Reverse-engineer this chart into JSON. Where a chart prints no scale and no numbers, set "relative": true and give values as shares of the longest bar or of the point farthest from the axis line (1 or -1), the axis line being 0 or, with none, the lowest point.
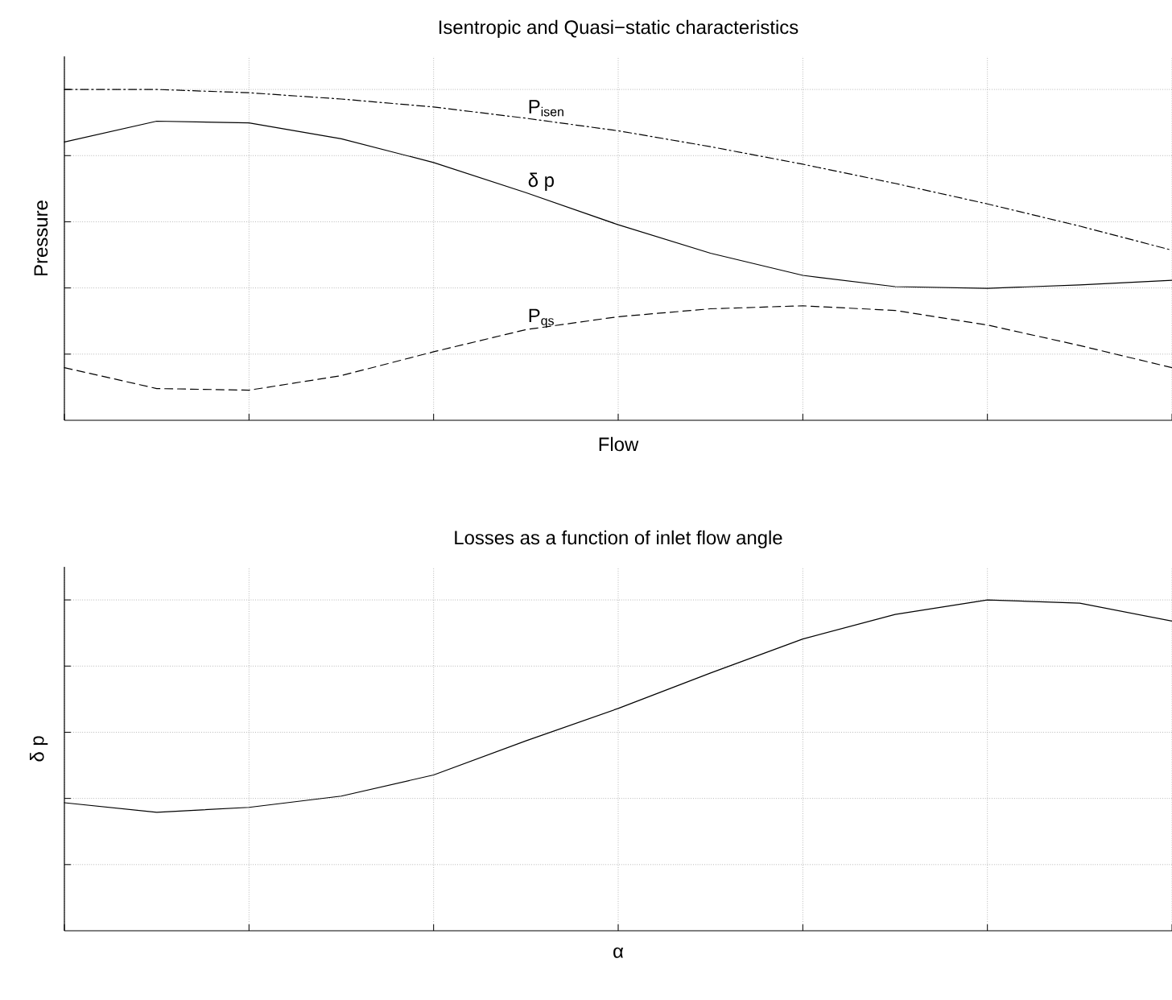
{
  "chart_data": [
    {
      "type": "line",
      "title": "Isentropic and Quasi−static characteristics",
      "xlabel": "Flow",
      "ylabel": "Pressure",
      "relative": true,
      "grid": true,
      "legend": false,
      "marker": "none",
      "tick_labels": false,
      "categories": [
        null,
        null,
        null,
        null,
        null,
        null,
        null,
        null,
        null,
        null,
        null,
        null,
        null
      ],
      "series": [
        {
          "name": "P$_{isen}$",
          "color": "#000000",
          "line_style": "dashdot",
          "values": [
            1.0,
            1.0,
            0.99,
            0.971,
            0.947,
            0.913,
            0.875,
            0.827,
            0.774,
            0.716,
            0.654,
            0.587,
            0.514
          ]
        },
        {
          "name": "δ p",
          "color": "#000000",
          "line_style": "solid",
          "values": [
            0.841,
            0.904,
            0.899,
            0.851,
            0.779,
            0.688,
            0.591,
            0.505,
            0.438,
            0.404,
            0.399,
            0.409,
            0.423
          ]
        },
        {
          "name": "P$_{qs}$",
          "color": "#000000",
          "line_style": "dashed",
          "values": [
            0.159,
            0.096,
            0.091,
            0.135,
            0.207,
            0.274,
            0.313,
            0.337,
            0.346,
            0.332,
            0.288,
            0.226,
            0.159
          ]
        }
      ]
    },
    {
      "type": "line",
      "title": "Losses as a function of inlet flow angle",
      "xlabel": "α",
      "ylabel": "δ p",
      "relative": true,
      "grid": true,
      "legend": false,
      "marker": "none",
      "tick_labels": false,
      "line_style": "solid",
      "color": "#000000",
      "categories": [
        null,
        null,
        null,
        null,
        null,
        null,
        null,
        null,
        null,
        null,
        null,
        null,
        null
      ],
      "values": [
        0.387,
        0.358,
        0.373,
        0.407,
        0.471,
        0.574,
        0.672,
        0.779,
        0.882,
        0.956,
        1.0,
        0.99,
        0.936
      ]
    }
  ]
}
